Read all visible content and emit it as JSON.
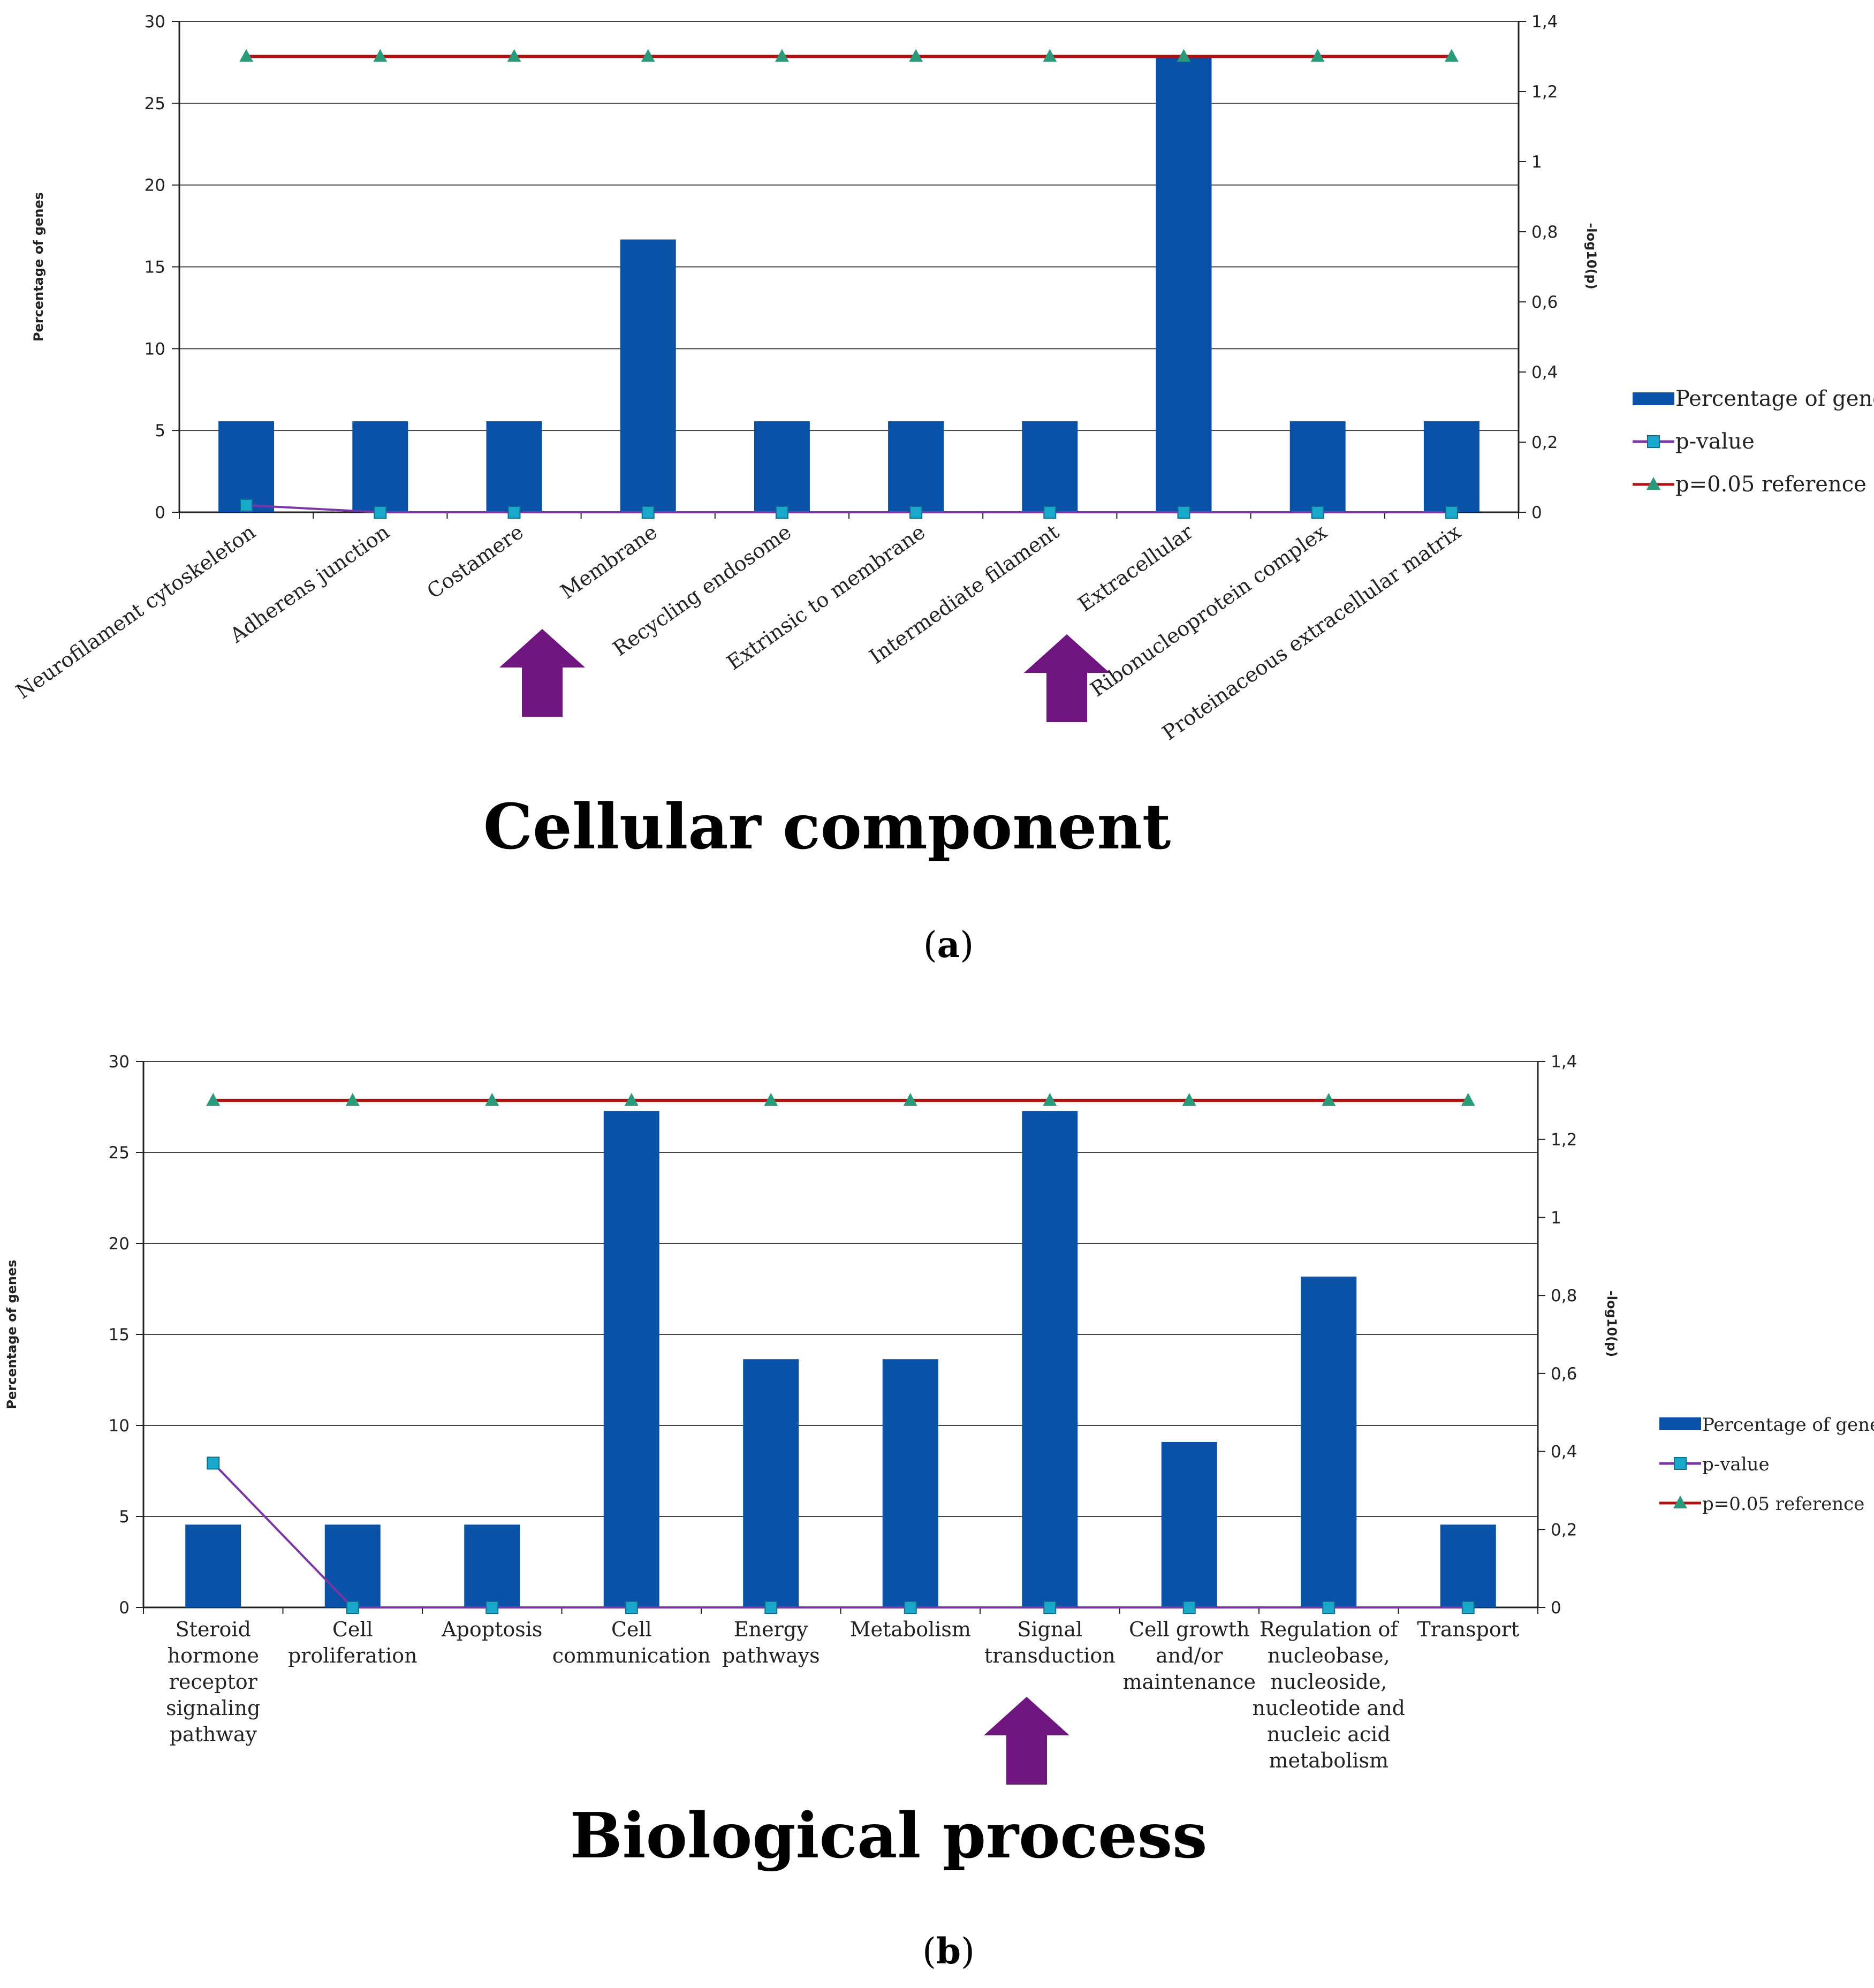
{
  "colors": {
    "bar": "#0a52a8",
    "pvalue_line": "#7b35a6",
    "pvalue_marker": "#19a8cc",
    "reference_line": "#b01010",
    "reference_marker": "#2a9a7a",
    "arrow": "#6e1580",
    "grid": "#444444",
    "axis": "#222222"
  },
  "chart_data": [
    {
      "id": "a",
      "type": "bar",
      "title": "Cellular component",
      "panel_label": "a",
      "ylabel": "Percentage of genes",
      "y2label": "-log10(p)",
      "ylim": [
        0,
        30
      ],
      "yticks": [
        "0",
        "5",
        "10",
        "15",
        "20",
        "25",
        "30"
      ],
      "y2lim": [
        0,
        1.4
      ],
      "y2ticks": [
        "0",
        "0,2",
        "0,4",
        "0,6",
        "0,8",
        "1",
        "1,2",
        "1,4"
      ],
      "grid": true,
      "categories": [
        "Neurofilament cytoskeleton",
        "Adherens junction",
        "Costamere",
        "Membrane",
        "Recycling endosome",
        "Extrinsic to membrane",
        "Intermediate filament",
        "Extracellular",
        "Ribonucleoprotein complex",
        "Proteinaceous extracellular matrix"
      ],
      "series": [
        {
          "name": "Percentage of genes",
          "kind": "bar",
          "axis": "left",
          "values": [
            5.56,
            5.56,
            5.56,
            16.67,
            5.56,
            5.56,
            5.56,
            27.78,
            5.56,
            5.56
          ]
        },
        {
          "name": "p-value",
          "kind": "line",
          "axis": "right",
          "values": [
            0.02,
            0.0,
            0.0,
            0.0,
            0.0,
            0.0,
            0.0,
            0.0,
            0.0,
            0.0
          ]
        },
        {
          "name": "p=0.05 reference",
          "kind": "line",
          "axis": "right",
          "values": [
            1.3,
            1.3,
            1.3,
            1.3,
            1.3,
            1.3,
            1.3,
            1.3,
            1.3,
            1.3
          ]
        }
      ],
      "legend_position": "right",
      "highlighted": [
        "Membrane",
        "Extracellular"
      ]
    },
    {
      "id": "b",
      "type": "bar",
      "title": "Biological process",
      "panel_label": "b",
      "ylabel": "Percentage of genes",
      "y2label": "-log10(p)",
      "ylim": [
        0,
        30
      ],
      "yticks": [
        "0",
        "5",
        "10",
        "15",
        "20",
        "25",
        "30"
      ],
      "y2lim": [
        0,
        1.4
      ],
      "y2ticks": [
        "0",
        "0,2",
        "0,4",
        "0,6",
        "0,8",
        "1",
        "1,2",
        "1,4"
      ],
      "grid": true,
      "categories": [
        "Steroid hormone receptor signaling pathway",
        "Cell proliferation",
        "Apoptosis",
        "Cell communication",
        "Energy pathways",
        "Metabolism",
        "Signal transduction",
        "Cell growth and/or maintenance",
        "Regulation of nucleobase, nucleoside, nucleotide and nucleic acid metabolism",
        "Transport"
      ],
      "category_lines": [
        [
          "Steroid",
          "hormone",
          "receptor",
          "signaling",
          "pathway"
        ],
        [
          "Cell",
          "proliferation"
        ],
        [
          "Apoptosis"
        ],
        [
          "Cell",
          "communication"
        ],
        [
          "Energy",
          "pathways"
        ],
        [
          "Metabolism"
        ],
        [
          "Signal",
          "transduction"
        ],
        [
          "Cell growth",
          "and/or",
          "maintenance"
        ],
        [
          "Regulation of",
          "nucleobase,",
          "nucleoside,",
          "nucleotide and",
          "nucleic acid",
          "metabolism"
        ],
        [
          "Transport"
        ]
      ],
      "series": [
        {
          "name": "Percentage of genes",
          "kind": "bar",
          "axis": "left",
          "values": [
            4.55,
            4.55,
            4.55,
            27.27,
            13.64,
            13.64,
            27.27,
            9.09,
            18.18,
            4.55
          ]
        },
        {
          "name": "p-value",
          "kind": "line",
          "axis": "right",
          "values": [
            0.37,
            0.0,
            0.0,
            0.0,
            0.0,
            0.0,
            0.0,
            0.0,
            0.0,
            0.0
          ]
        },
        {
          "name": "p=0.05 reference",
          "kind": "line",
          "axis": "right",
          "values": [
            1.3,
            1.3,
            1.3,
            1.3,
            1.3,
            1.3,
            1.3,
            1.3,
            1.3,
            1.3
          ]
        }
      ],
      "legend_position": "right",
      "highlighted": [
        "Signal transduction"
      ]
    }
  ]
}
